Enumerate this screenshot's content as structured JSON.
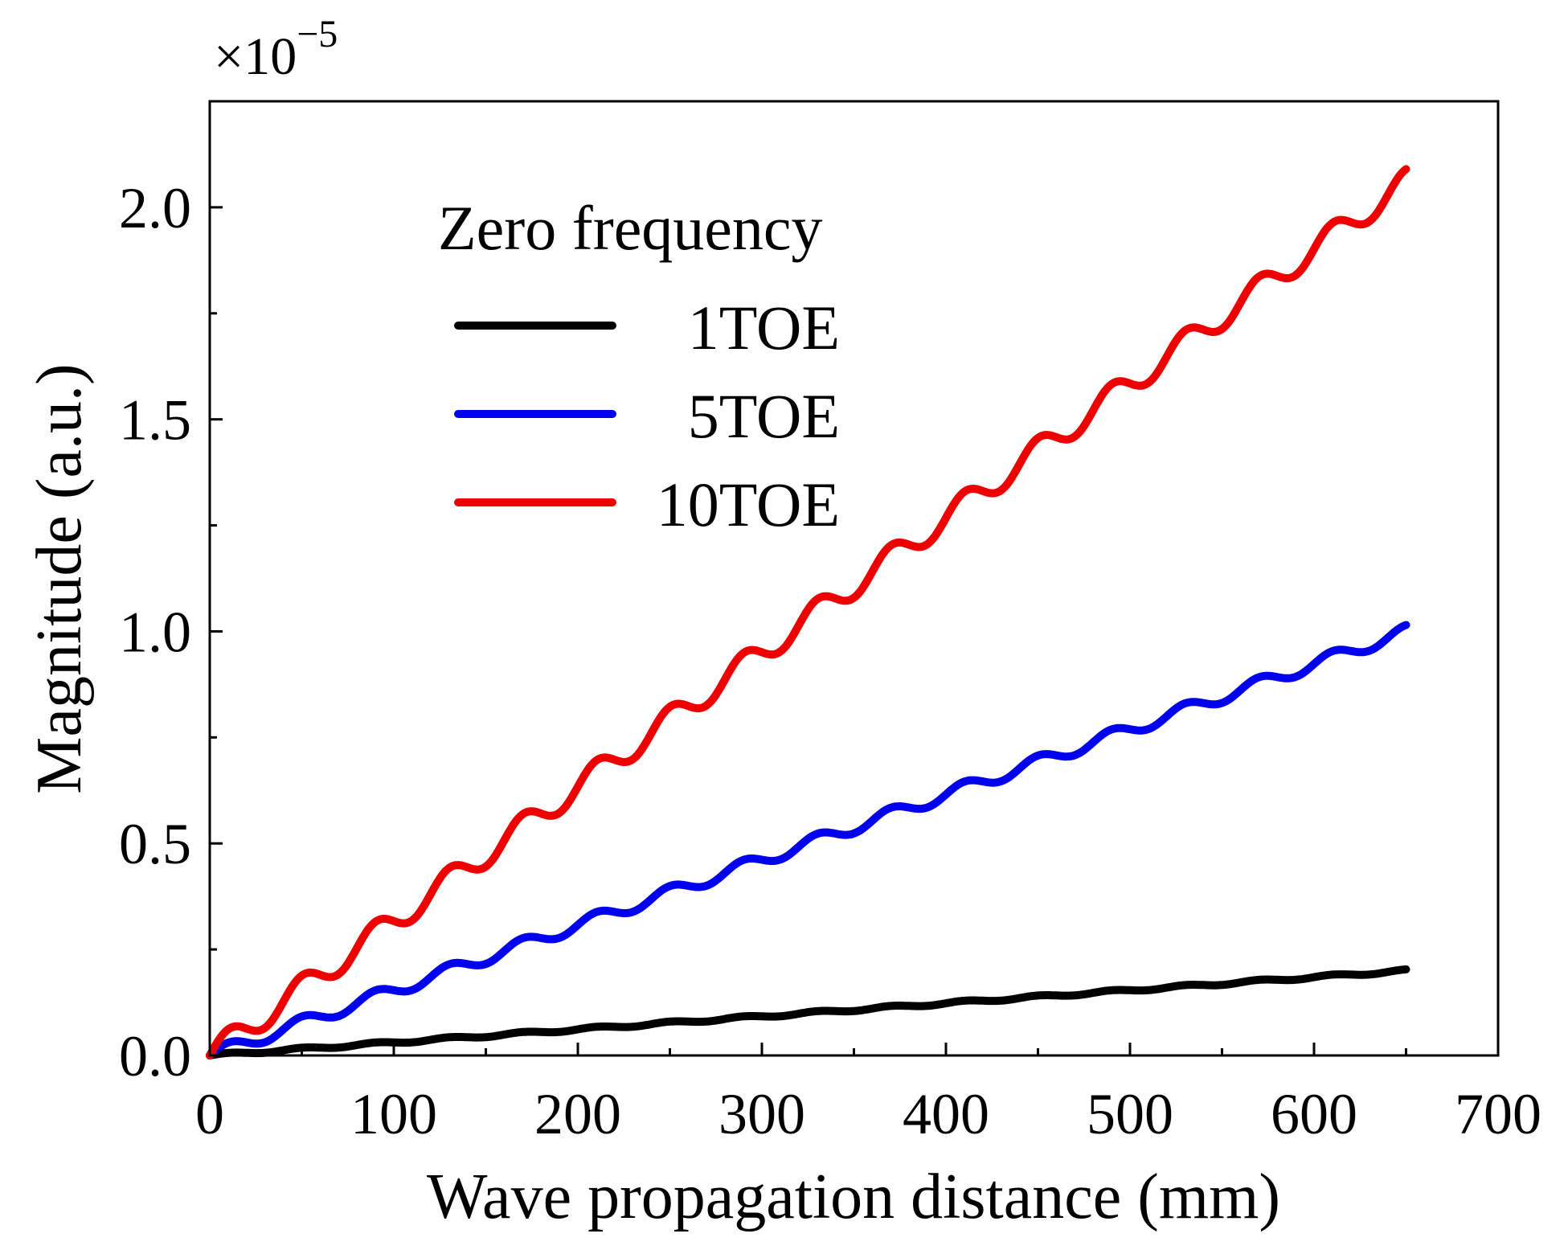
{
  "chart_data": {
    "type": "line",
    "title": "",
    "xlabel": "Wave propagation distance (mm)",
    "ylabel": "Magnitude (a.u.)",
    "xlim": [
      0,
      700
    ],
    "ylim": [
      0,
      2.25
    ],
    "x_ticks": [
      0,
      100,
      200,
      300,
      400,
      500,
      600,
      700
    ],
    "x_tick_labels": [
      "0",
      "100",
      "200",
      "300",
      "400",
      "500",
      "600",
      "700"
    ],
    "y_ticks": [
      0.0,
      0.5,
      1.0,
      1.5,
      2.0
    ],
    "y_tick_labels": [
      "0.0",
      "0.5",
      "1.0",
      "1.5",
      "2.0"
    ],
    "y_multiplier": {
      "base": "×10",
      "exponent": "−5"
    },
    "grid": false,
    "legend": {
      "title": "Zero frequency",
      "position": "top-left"
    },
    "series": [
      {
        "name": "1TOE",
        "color": "#000000",
        "x_range": [
          0,
          650
        ],
        "final_value": 0.2,
        "ripple_period_mm": 40,
        "ripple_amplitude": 0.003
      },
      {
        "name": "5TOE",
        "color": "#0000ee",
        "x_range": [
          0,
          650
        ],
        "final_value": 1.0,
        "ripple_period_mm": 40,
        "ripple_amplitude": 0.015
      },
      {
        "name": "10TOE",
        "color": "#ee0000",
        "x_range": [
          0,
          650
        ],
        "final_value": 2.06,
        "ripple_period_mm": 40,
        "ripple_amplitude": 0.03
      }
    ]
  }
}
